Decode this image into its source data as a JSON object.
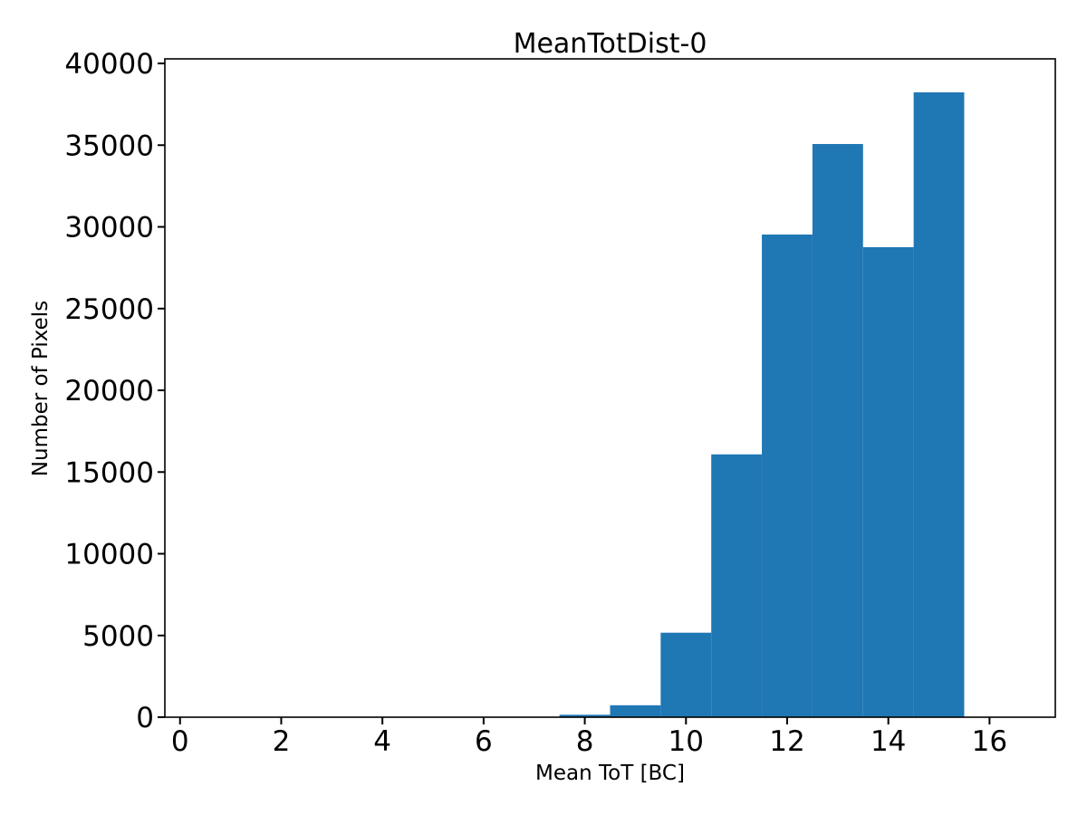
{
  "figure": {
    "background": "#ffffff"
  },
  "chart_data": {
    "type": "histogram",
    "title": "MeanTotDist-0",
    "xlabel": "Mean ToT [BC]",
    "ylabel": "Number of Pixels",
    "bar_color": "#1f77b4",
    "axis_color": "#000000",
    "bin_width": 1.0,
    "bin_left_edges": [
      7.5,
      8.5,
      9.5,
      10.5,
      11.5,
      12.5,
      13.5,
      14.5
    ],
    "values": [
      150,
      730,
      5170,
      16080,
      29530,
      35070,
      28760,
      38230
    ],
    "xticks": [
      0,
      2,
      4,
      6,
      8,
      10,
      12,
      14,
      16
    ],
    "yticks": [
      0,
      5000,
      10000,
      15000,
      20000,
      25000,
      30000,
      35000,
      40000
    ],
    "xlim": [
      -0.3,
      17.3
    ],
    "ylim": [
      0,
      40280
    ],
    "grid": false,
    "legend_position": "none"
  }
}
